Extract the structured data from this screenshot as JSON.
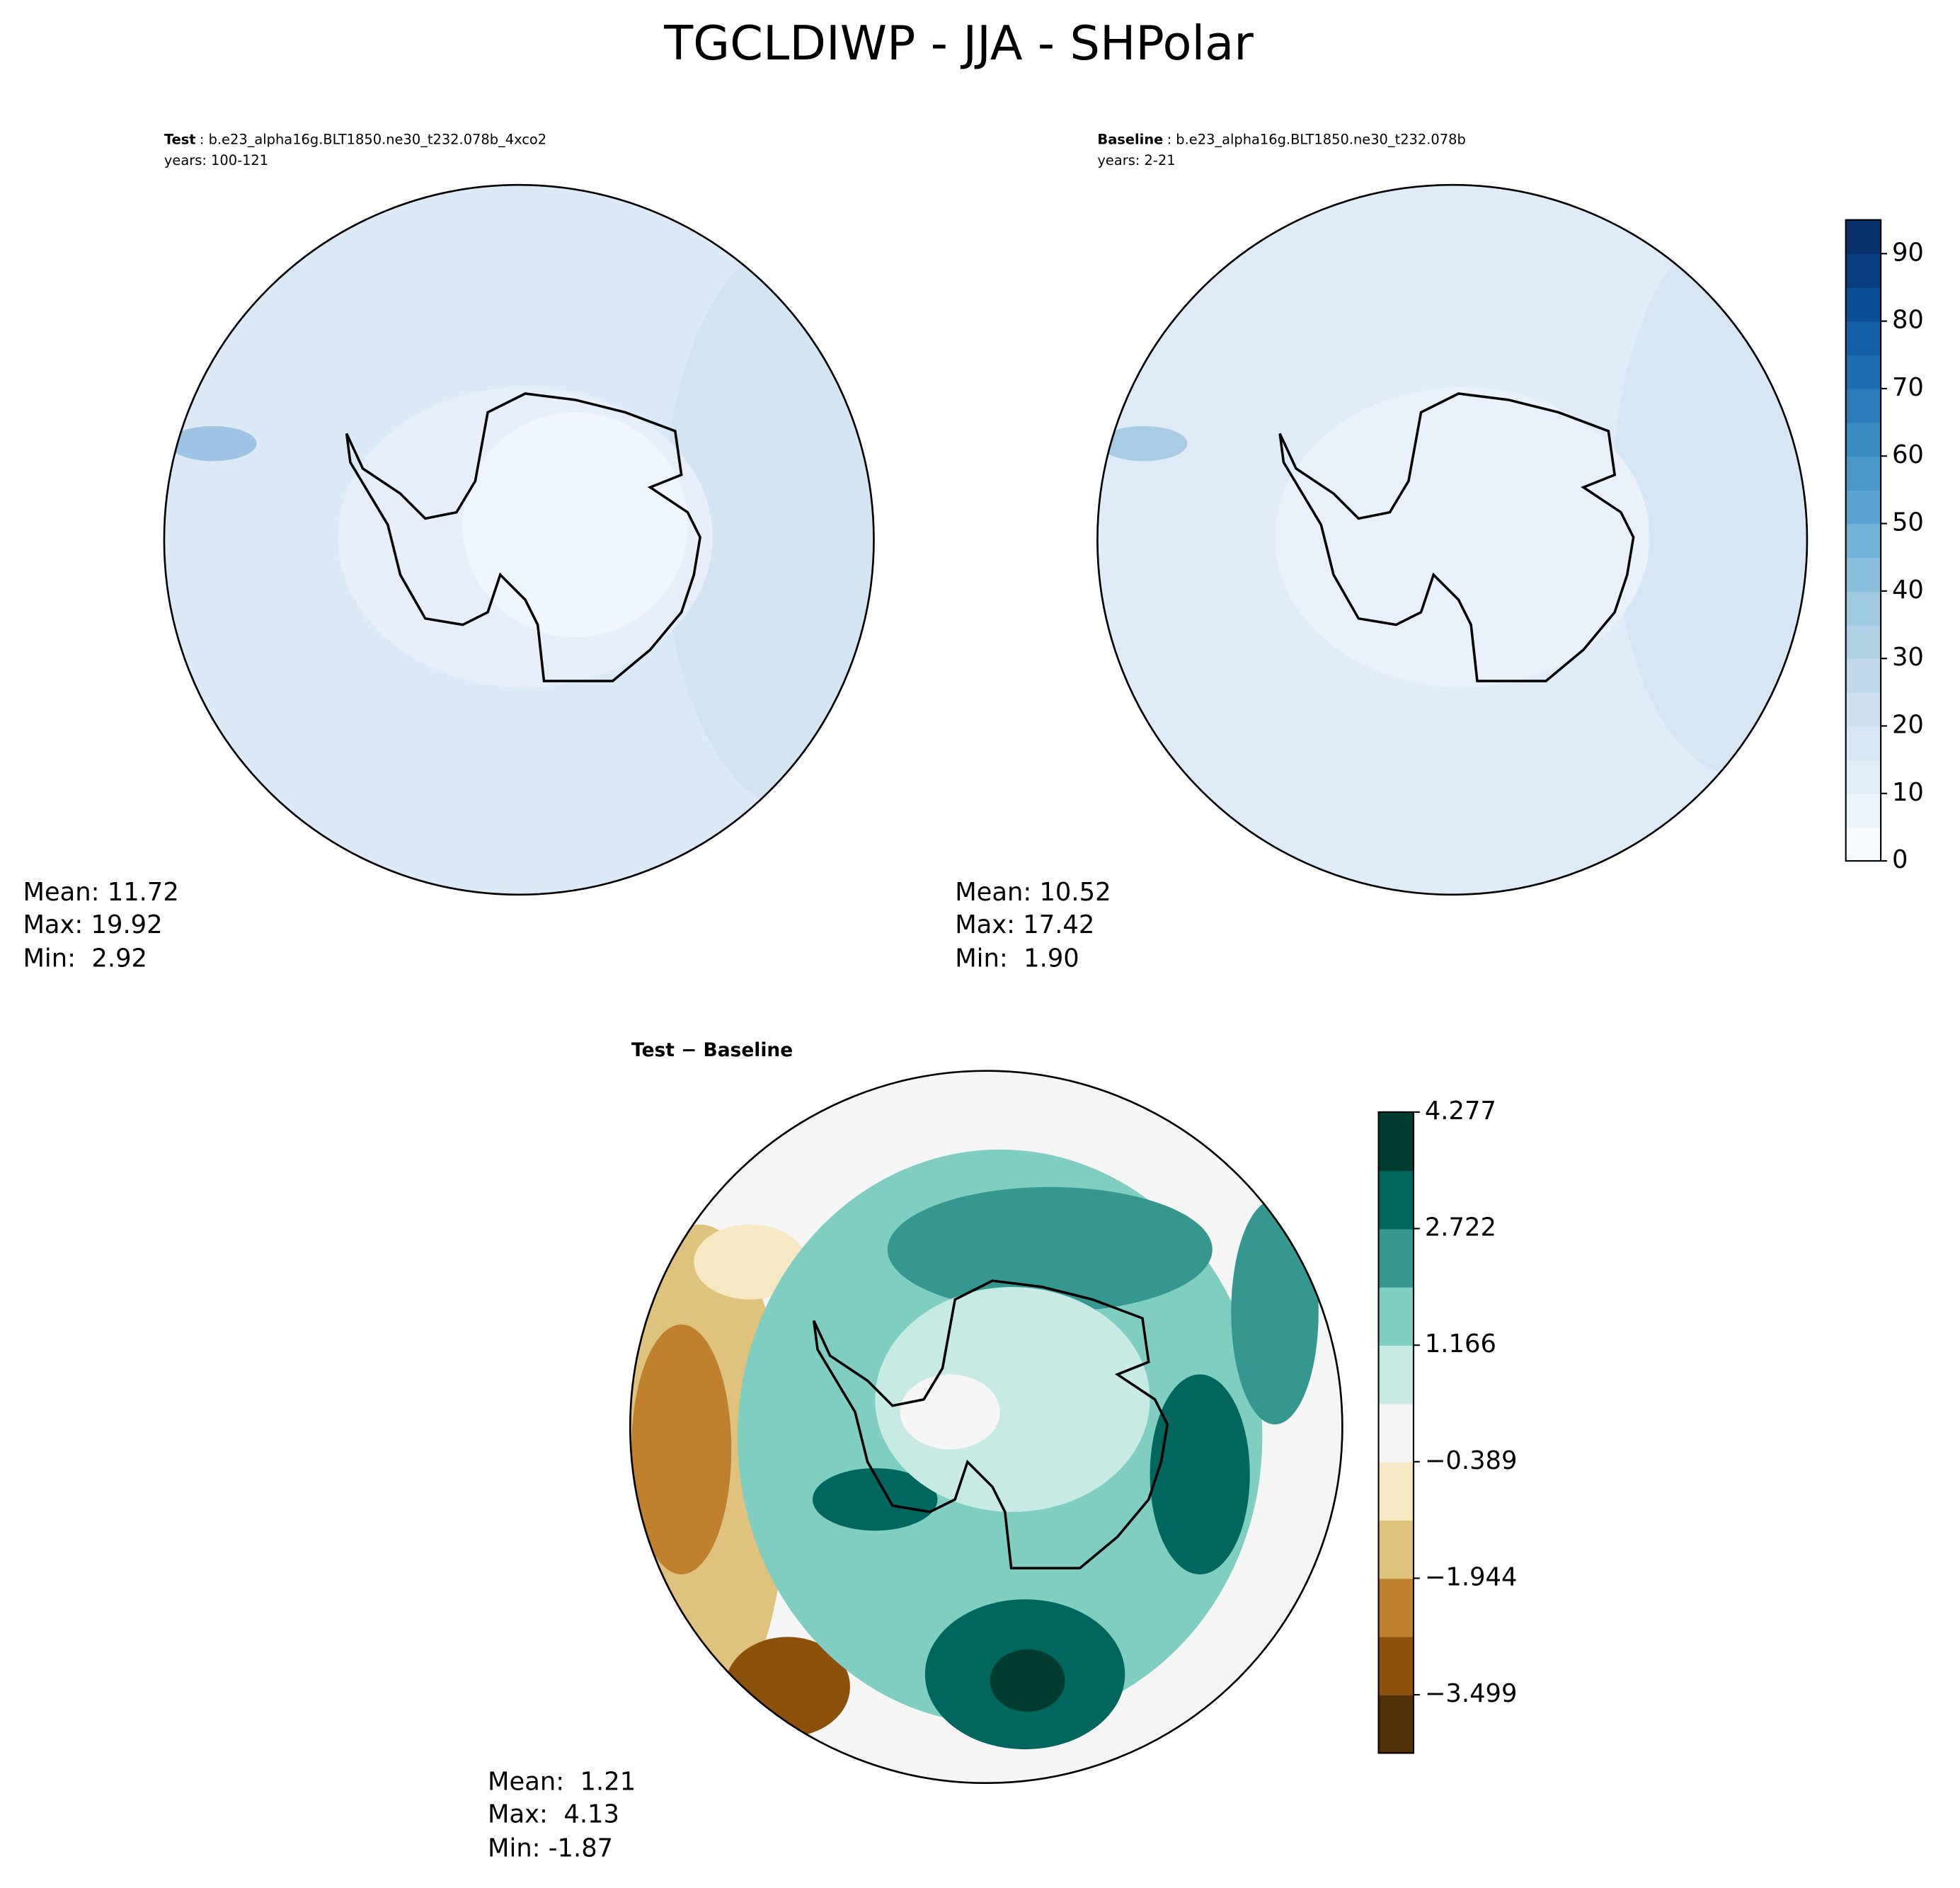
{
  "title": "TGCLDIWP - JJA - SHPolar",
  "panels": [
    {
      "label": "Test",
      "case": ": b.e23_alpha16g.BLT1850.ne30_t232.078b_4xco2",
      "years": "years: 100-121",
      "stats": [
        "Mean: 11.72",
        "Max: 19.92",
        "Min:  2.92"
      ]
    },
    {
      "label": "Baseline",
      "case": ": b.e23_alpha16g.BLT1850.ne30_t232.078b",
      "years": "years: 2-21",
      "stats": [
        "Mean: 10.52",
        "Max: 17.42",
        "Min:  1.90"
      ]
    },
    {
      "label": "Test − Baseline",
      "stats": [
        "Mean:  1.21",
        "Max:  4.13",
        "Min: -1.87"
      ]
    }
  ],
  "colorbars": [
    {
      "lim": [
        0,
        95
      ],
      "ticks": [
        0,
        10,
        20,
        30,
        40,
        50,
        60,
        70,
        80,
        90
      ],
      "colors": [
        "#f7fbff",
        "#ebf3fb",
        "#e0ecf8",
        "#d6e6f4",
        "#cde0f1",
        "#c1d9ed",
        "#b0d2e7",
        "#9dc9e1",
        "#88bedc",
        "#72b2d7",
        "#5ba3d0",
        "#4a98c9",
        "#3a8ac2",
        "#2b7bba",
        "#1e6cb1",
        "#135fa7",
        "#0b4f96",
        "#083f80",
        "#08306b"
      ]
    },
    {
      "lim": [
        -4.277,
        4.277
      ],
      "ticks": [
        {
          "value": -3.499,
          "label": "−3.499"
        },
        {
          "value": -1.944,
          "label": "−1.944"
        },
        {
          "value": -0.389,
          "label": "−0.389"
        },
        1.166,
        2.722,
        4.277
      ],
      "colors": [
        "#543005",
        "#8c510a",
        "#bf812d",
        "#dfc27d",
        "#f6e8c3",
        "#f5f5f5",
        "#c7eae5",
        "#80cdc1",
        "#35978f",
        "#01665e",
        "#003c30"
      ]
    }
  ]
}
